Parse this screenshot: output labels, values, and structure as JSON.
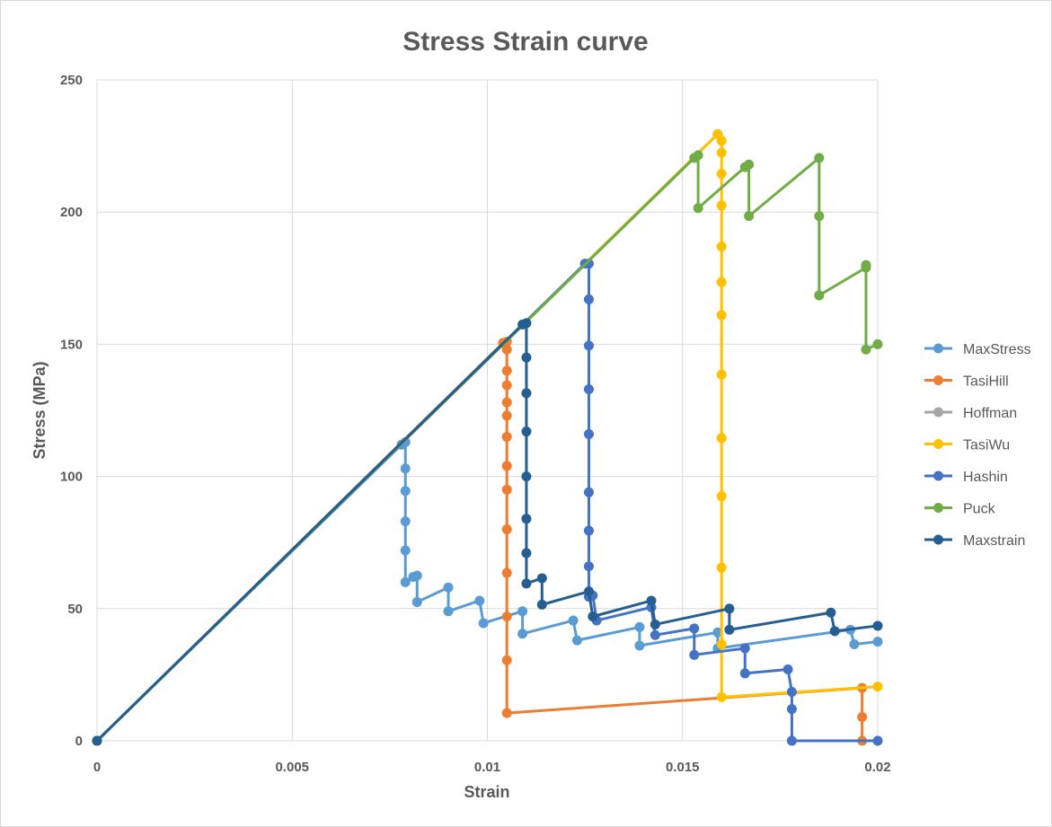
{
  "chart_data": {
    "type": "line",
    "title": "Stress Strain curve",
    "xlabel": "Strain",
    "ylabel": "Stress (MPa)",
    "xlim": [
      0,
      0.02
    ],
    "ylim": [
      0,
      250
    ],
    "x_ticks": [
      0,
      0.005,
      0.01,
      0.015,
      0.02
    ],
    "x_tick_labels": [
      "0",
      "0.005",
      "0.01",
      "0.015",
      "0.02"
    ],
    "y_ticks": [
      0,
      50,
      100,
      150,
      200,
      250
    ],
    "y_tick_labels": [
      "0",
      "50",
      "100",
      "150",
      "200",
      "250"
    ],
    "grid": true,
    "legend_position": "right",
    "series": [
      {
        "name": "MaxStress",
        "color": "#5b9bd5",
        "points": [
          [
            0,
            0
          ],
          [
            0.0078,
            112
          ],
          [
            0.0079,
            113
          ],
          [
            0.0079,
            103
          ],
          [
            0.0079,
            94.5
          ],
          [
            0.0079,
            83
          ],
          [
            0.0079,
            72
          ],
          [
            0.0079,
            60
          ],
          [
            0.0081,
            62
          ],
          [
            0.0082,
            62.5
          ],
          [
            0.0082,
            52.5
          ],
          [
            0.009,
            58
          ],
          [
            0.009,
            49
          ],
          [
            0.0098,
            53
          ],
          [
            0.0099,
            44.5
          ],
          [
            0.0109,
            49
          ],
          [
            0.0109,
            40.5
          ],
          [
            0.0122,
            45.5
          ],
          [
            0.0123,
            38
          ],
          [
            0.0139,
            43
          ],
          [
            0.0139,
            36
          ],
          [
            0.0159,
            41
          ],
          [
            0.0159,
            35
          ],
          [
            0.0193,
            42
          ],
          [
            0.0194,
            36.5
          ],
          [
            0.02,
            37.5
          ]
        ]
      },
      {
        "name": "TasiHill",
        "color": "#ed7d31",
        "points": [
          [
            0,
            0
          ],
          [
            0.0104,
            150.5
          ],
          [
            0.0105,
            151
          ],
          [
            0.0105,
            148
          ],
          [
            0.0105,
            140
          ],
          [
            0.0105,
            134.5
          ],
          [
            0.0105,
            128
          ],
          [
            0.0105,
            123
          ],
          [
            0.0105,
            115
          ],
          [
            0.0105,
            104
          ],
          [
            0.0105,
            95
          ],
          [
            0.0105,
            80
          ],
          [
            0.0105,
            63.5
          ],
          [
            0.0105,
            47
          ],
          [
            0.0105,
            30.5
          ],
          [
            0.0105,
            10.5
          ],
          [
            0.0196,
            20
          ],
          [
            0.0196,
            9
          ],
          [
            0.0196,
            0
          ]
        ]
      },
      {
        "name": "Hoffman",
        "color": "#a5a5a5",
        "points": [
          [
            0,
            0
          ],
          [
            0.0159,
            229.5
          ]
        ]
      },
      {
        "name": "TasiWu",
        "color": "#ffc000",
        "points": [
          [
            0,
            0
          ],
          [
            0.0159,
            229.5
          ],
          [
            0.016,
            227
          ],
          [
            0.016,
            222.5
          ],
          [
            0.016,
            214.5
          ],
          [
            0.016,
            202.5
          ],
          [
            0.016,
            187
          ],
          [
            0.016,
            173.5
          ],
          [
            0.016,
            161
          ],
          [
            0.016,
            138.5
          ],
          [
            0.016,
            114.5
          ],
          [
            0.016,
            92.5
          ],
          [
            0.016,
            65.5
          ],
          [
            0.016,
            36.5
          ],
          [
            0.016,
            16.5
          ],
          [
            0.02,
            20.5
          ]
        ]
      },
      {
        "name": "Hashin",
        "color": "#4472c4",
        "points": [
          [
            0,
            0
          ],
          [
            0.0125,
            180.5
          ],
          [
            0.0126,
            180.5
          ],
          [
            0.0126,
            167
          ],
          [
            0.0126,
            149.5
          ],
          [
            0.0126,
            133
          ],
          [
            0.0126,
            116
          ],
          [
            0.0126,
            94
          ],
          [
            0.0126,
            79.5
          ],
          [
            0.0126,
            66
          ],
          [
            0.0126,
            54.5
          ],
          [
            0.0127,
            55
          ],
          [
            0.0128,
            45.5
          ],
          [
            0.0142,
            50.5
          ],
          [
            0.0143,
            40
          ],
          [
            0.0153,
            42.5
          ],
          [
            0.0153,
            32.5
          ],
          [
            0.0166,
            35
          ],
          [
            0.0166,
            25.5
          ],
          [
            0.0177,
            27
          ],
          [
            0.0178,
            18.5
          ],
          [
            0.0178,
            12
          ],
          [
            0.0178,
            0
          ],
          [
            0.02,
            0
          ]
        ]
      },
      {
        "name": "Puck",
        "color": "#70ad47",
        "points": [
          [
            0,
            0
          ],
          [
            0.0153,
            220.5
          ],
          [
            0.0154,
            221.5
          ],
          [
            0.0154,
            201.5
          ],
          [
            0.0166,
            217
          ],
          [
            0.0167,
            218
          ],
          [
            0.0167,
            198.5
          ],
          [
            0.0185,
            220.5
          ],
          [
            0.0185,
            198.5
          ],
          [
            0.0185,
            168.5
          ],
          [
            0.0197,
            179
          ],
          [
            0.0197,
            180
          ],
          [
            0.0197,
            148
          ],
          [
            0.02,
            150
          ]
        ]
      },
      {
        "name": "Maxstrain",
        "color": "#255e91",
        "points": [
          [
            0,
            0
          ],
          [
            0.0109,
            157.5
          ],
          [
            0.011,
            158
          ],
          [
            0.011,
            145
          ],
          [
            0.011,
            131.5
          ],
          [
            0.011,
            117
          ],
          [
            0.011,
            100
          ],
          [
            0.011,
            84
          ],
          [
            0.011,
            71
          ],
          [
            0.011,
            59.5
          ],
          [
            0.0114,
            61.5
          ],
          [
            0.0114,
            51.5
          ],
          [
            0.0126,
            56.5
          ],
          [
            0.0127,
            47
          ],
          [
            0.0142,
            53
          ],
          [
            0.0143,
            44
          ],
          [
            0.0162,
            50
          ],
          [
            0.0162,
            42
          ],
          [
            0.0188,
            48.5
          ],
          [
            0.0189,
            41.5
          ],
          [
            0.02,
            43.5
          ]
        ]
      }
    ]
  }
}
